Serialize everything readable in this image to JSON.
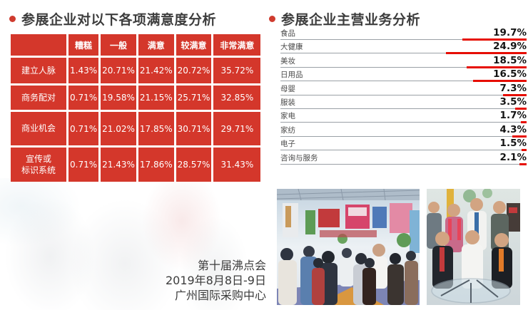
{
  "chart_data": [
    {
      "type": "table",
      "title": "参展企业对以下各项满意度分析",
      "columns": [
        "",
        "糟糕",
        "一般",
        "满意",
        "较满意",
        "非常满意"
      ],
      "rows": [
        {
          "label": "建立人脉",
          "values": [
            "1.43%",
            "20.71%",
            "21.42%",
            "20.72%",
            "35.72%"
          ]
        },
        {
          "label": "商务配对",
          "values": [
            "0.71%",
            "19.58%",
            "21.15%",
            "25.71%",
            "32.85%"
          ]
        },
        {
          "label": "商业机会",
          "values": [
            "0.71%",
            "21.02%",
            "17.85%",
            "30.71%",
            "29.71%"
          ]
        },
        {
          "label": "宣传或\n标识系统",
          "values": [
            "0.71%",
            "21.43%",
            "17.86%",
            "28.57%",
            "31.43%"
          ]
        }
      ]
    },
    {
      "type": "bar",
      "orientation": "horizontal",
      "title": "参展企业主营业务分析",
      "categories": [
        "食品",
        "大健康",
        "美妆",
        "日用品",
        "母婴",
        "服装",
        "家电",
        "家纺",
        "电子",
        "咨询与服务"
      ],
      "values": [
        19.7,
        24.9,
        18.5,
        16.5,
        7.3,
        3.5,
        1.7,
        4.3,
        1.5,
        2.1
      ],
      "value_labels": [
        "19.7%",
        "24.9%",
        "18.5%",
        "16.5%",
        "7.3%",
        "3.5%",
        "1.7%",
        "4.3%",
        "1.5%",
        "2.1%"
      ],
      "unit": "%",
      "xlim": [
        0,
        25.9
      ],
      "bar_color": "#e60d00",
      "track_color": "#9aa0a6",
      "legend": "none",
      "grid": false
    }
  ],
  "footer": {
    "lines": [
      "第十届沸点会",
      "2019年8月8日-9日",
      "广州国际采购中心"
    ]
  },
  "colors": {
    "table_red": "#d4372b",
    "bullet_red": "#cf3b2e",
    "bar_red": "#e60d00",
    "title_text": "#3d3d3d"
  }
}
